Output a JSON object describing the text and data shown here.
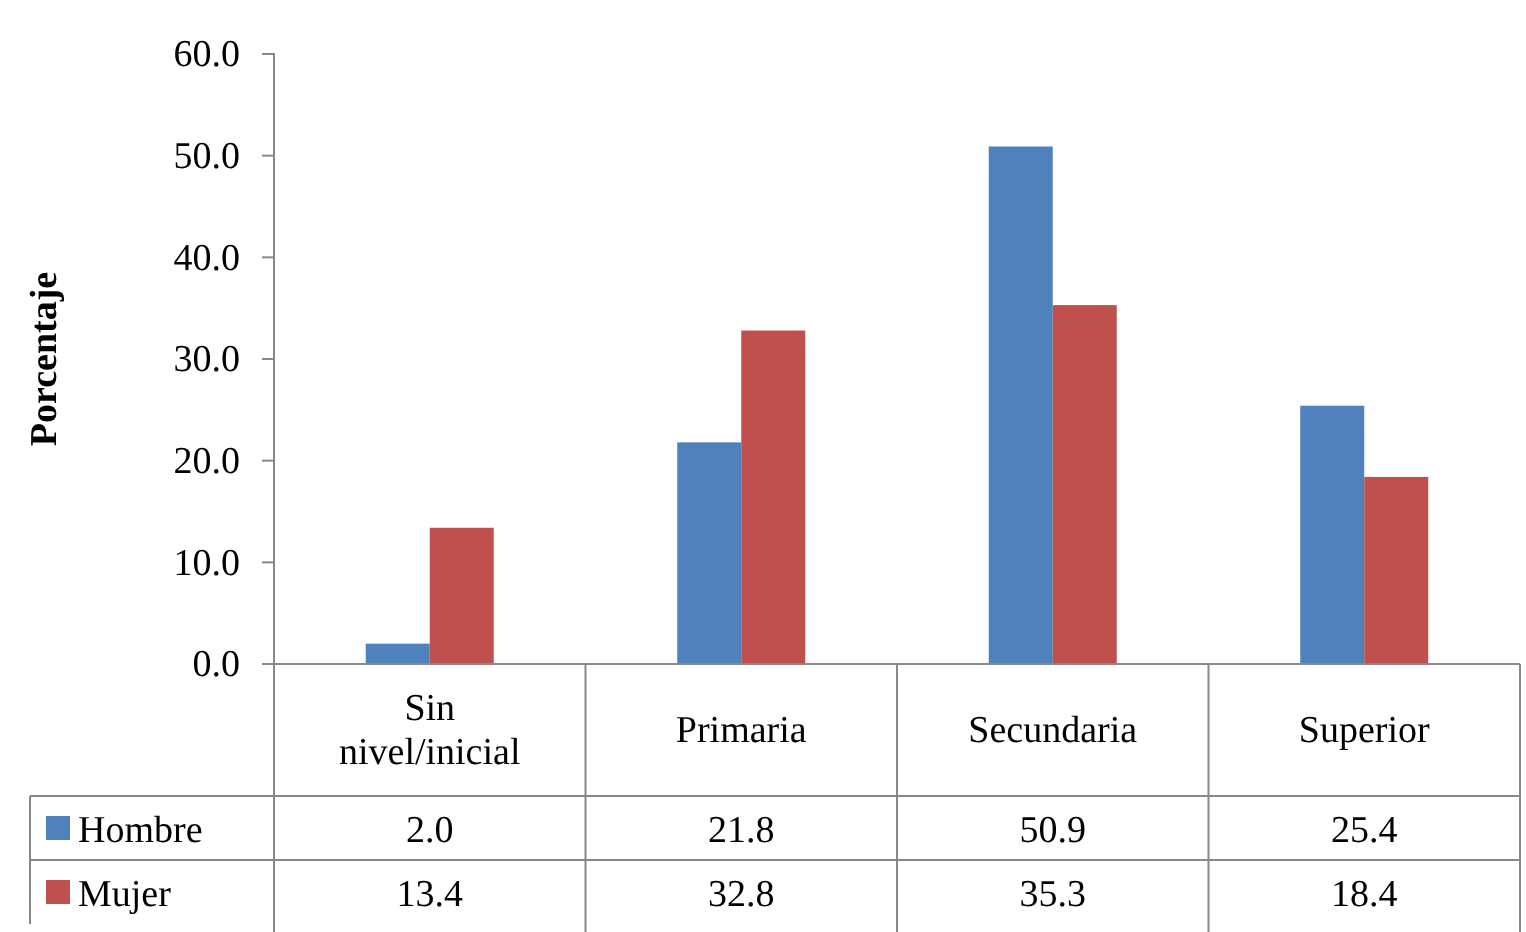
{
  "chart_data": {
    "type": "bar",
    "ylabel": "Porcentaje",
    "categories": [
      "Sin nivel/inicial",
      "Primaria",
      "Secundaria",
      "Superior"
    ],
    "series": [
      {
        "name": "Hombre",
        "color": "#4f81bd",
        "values": [
          2.0,
          21.8,
          50.9,
          25.4
        ],
        "value_labels": [
          "2.0",
          "21.8",
          "50.9",
          "25.4"
        ]
      },
      {
        "name": "Mujer",
        "color": "#c0504d",
        "values": [
          13.4,
          32.8,
          35.3,
          18.4
        ],
        "value_labels": [
          "13.4",
          "32.8",
          "35.3",
          "18.4"
        ]
      }
    ],
    "ylim": [
      0,
      60
    ],
    "yticks": [
      {
        "value": 0,
        "label": "0.0"
      },
      {
        "value": 10,
        "label": "10.0"
      },
      {
        "value": 20,
        "label": "20.0"
      },
      {
        "value": 30,
        "label": "30.0"
      },
      {
        "value": 40,
        "label": "40.0"
      },
      {
        "value": 50,
        "label": "50.0"
      },
      {
        "value": 60,
        "label": "60.0"
      }
    ],
    "grid": false,
    "legend": "bottom"
  }
}
